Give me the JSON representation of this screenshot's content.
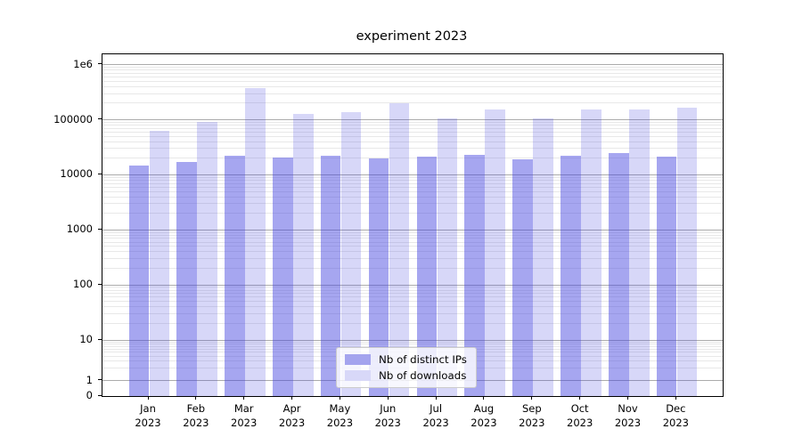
{
  "chart_data": {
    "type": "bar",
    "title": "experiment 2023",
    "categories": [
      "Jan",
      "Feb",
      "Mar",
      "Apr",
      "May",
      "Jun",
      "Jul",
      "Aug",
      "Sep",
      "Oct",
      "Nov",
      "Dec"
    ],
    "category_year": "2023",
    "series": [
      {
        "name": "Nb of distinct IPs",
        "values": [
          14500,
          17000,
          22000,
          20800,
          22500,
          19800,
          21800,
          22800,
          19200,
          22500,
          25000,
          21800
        ]
      },
      {
        "name": "Nb of downloads",
        "values": [
          62000,
          91000,
          380000,
          127000,
          136000,
          200000,
          108000,
          152000,
          106000,
          152000,
          154000,
          163000
        ]
      }
    ],
    "yscale": "log-with-zero-baseline (symlog-like)",
    "ylim": [
      0,
      1000000
    ],
    "yticks": [
      {
        "label": "1e6",
        "value": 1000000
      },
      {
        "label": "100000",
        "value": 100000
      },
      {
        "label": "10000",
        "value": 10000
      },
      {
        "label": "1000",
        "value": 1000
      },
      {
        "label": "100",
        "value": 100
      },
      {
        "label": "10",
        "value": 10
      },
      {
        "label": "1",
        "value": 1
      },
      {
        "label": "0",
        "value": 0
      }
    ],
    "grid": "horizontal major and minor gridlines",
    "legend_position": "lower center inside plot"
  },
  "colors": {
    "bar_ips": "rgba(65,65,223,0.47)",
    "bar_downloads": "rgba(65,65,223,0.21)",
    "swatch_ips": "#a4a4ee",
    "swatch_downloads": "#d8d8f8",
    "grid_major": "#ababab",
    "grid_minor": "#e8e8e8",
    "axis": "#000000"
  }
}
